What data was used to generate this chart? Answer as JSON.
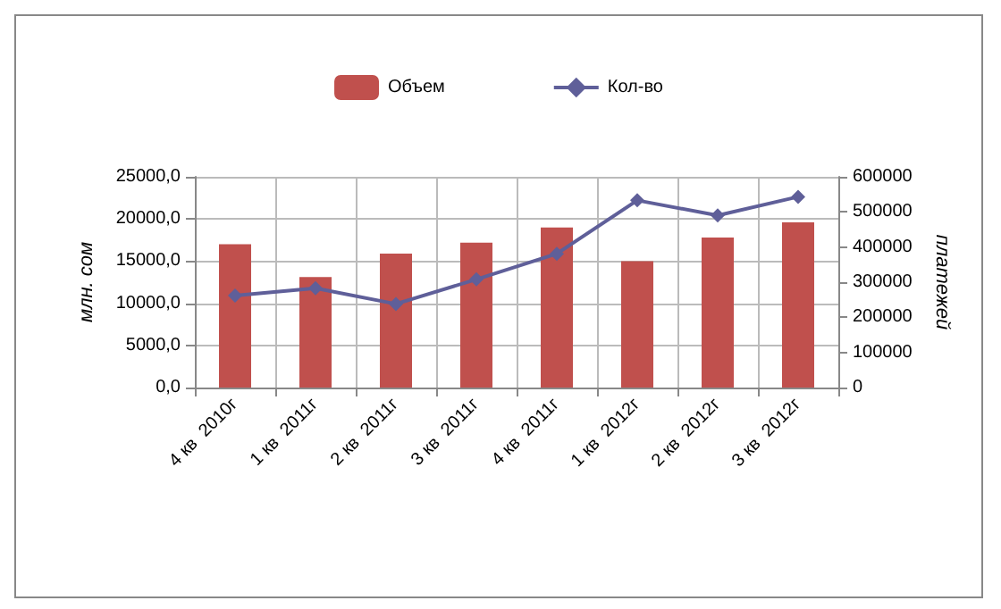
{
  "chart_data": {
    "type": "bar",
    "categories": [
      "4 кв  2010г",
      "1 кв  2011г",
      "2 кв  2011г",
      "3 кв  2011г",
      "4 кв  2011г",
      "1 кв  2012г",
      "2 кв  2012г",
      "3 кв  2012г"
    ],
    "series": [
      {
        "name": "Объем",
        "color": "#c0504d",
        "values": [
          17000,
          13100,
          15900,
          17200,
          19000,
          15000,
          17800,
          19600
        ]
      },
      {
        "name": "Кол-во",
        "type": "line",
        "axis": "y2",
        "color": "#5f5f99",
        "marker": "diamond",
        "values": [
          262000,
          283000,
          238000,
          308000,
          381000,
          533000,
          490000,
          543000
        ]
      }
    ],
    "ylabel": "млн. сом",
    "y2label": "платежей",
    "ylim": [
      0,
      25000
    ],
    "yticks": [
      {
        "value": 0,
        "label": "0,0"
      },
      {
        "value": 5000,
        "label": "5000,0"
      },
      {
        "value": 10000,
        "label": "10000,0"
      },
      {
        "value": 15000,
        "label": "15000,0"
      },
      {
        "value": 20000,
        "label": "20000,0"
      },
      {
        "value": 25000,
        "label": "25000,0"
      }
    ],
    "y2lim": [
      0,
      600000
    ],
    "y2ticks": [
      0,
      100000,
      200000,
      300000,
      400000,
      500000,
      600000
    ],
    "grid": true,
    "legend": "top"
  }
}
